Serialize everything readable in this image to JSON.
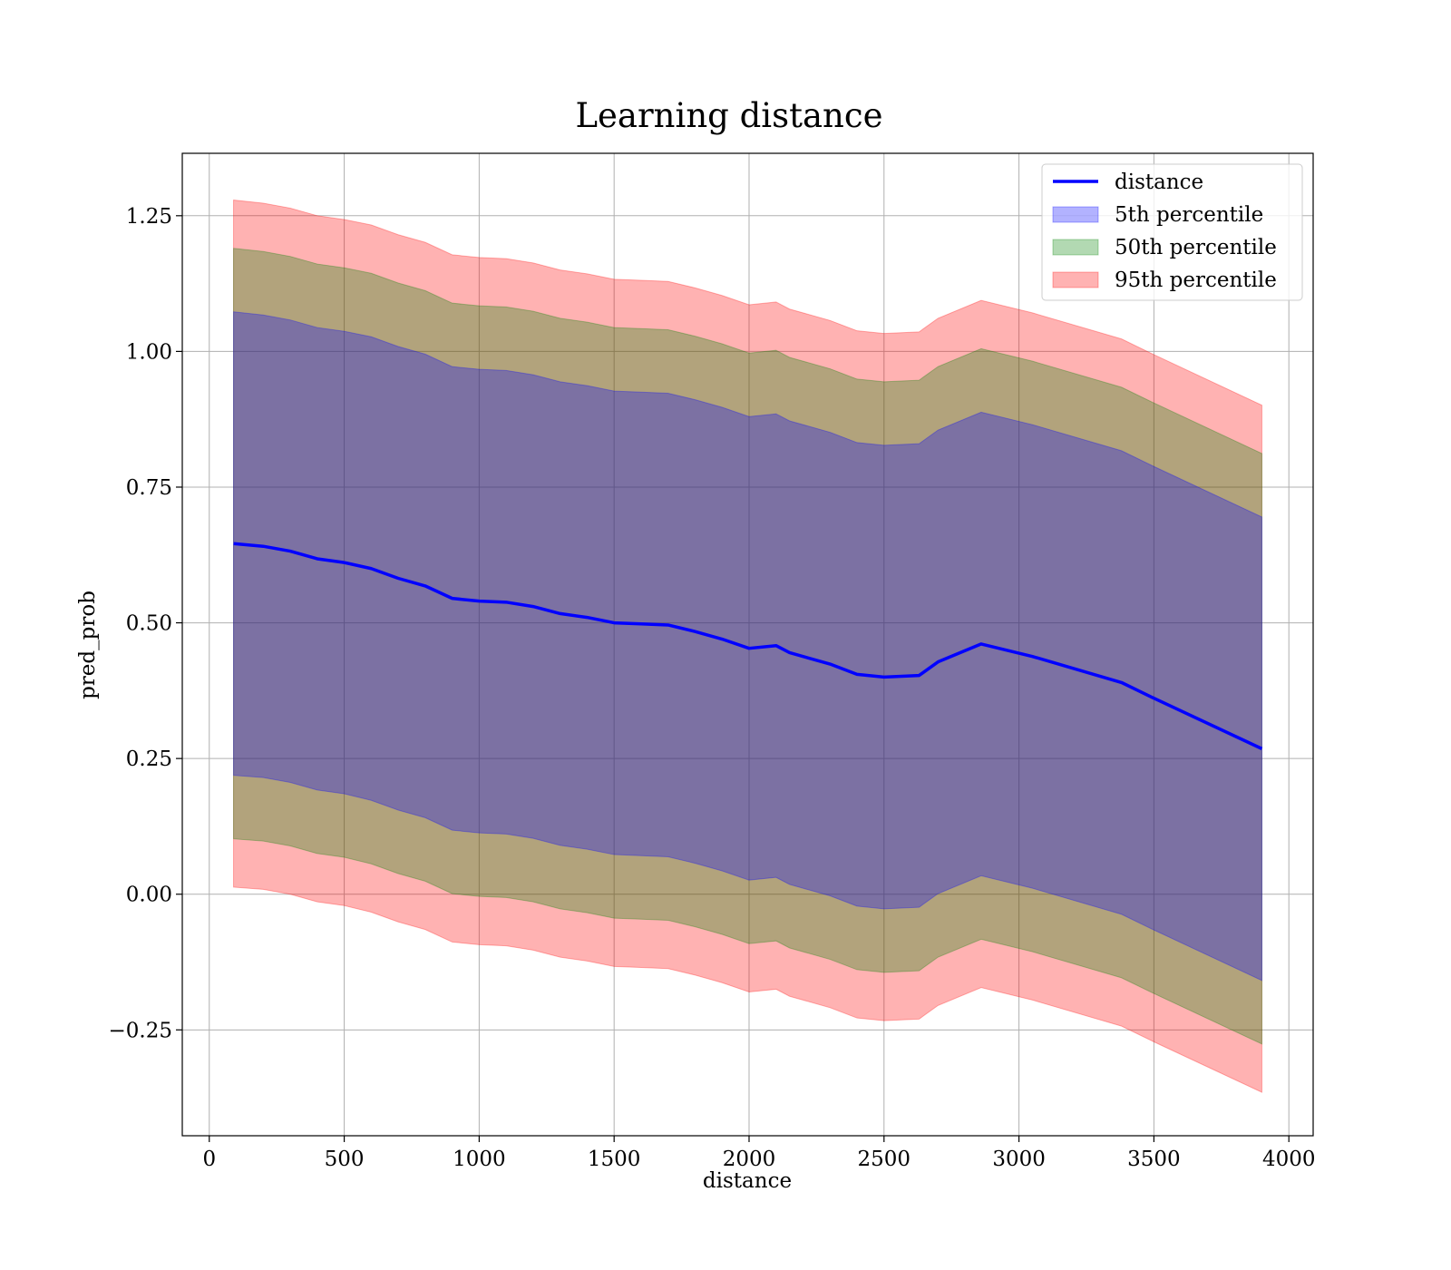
{
  "chart_data": {
    "type": "line",
    "title": "Learning distance",
    "xlabel": "distance",
    "ylabel": "pred_prob",
    "xlim": [
      -100,
      4090
    ],
    "ylim": [
      -0.445,
      1.365
    ],
    "x_ticks": [
      0,
      500,
      1000,
      1500,
      2000,
      2500,
      3000,
      3500,
      4000
    ],
    "y_ticks": [
      -0.25,
      0.0,
      0.25,
      0.5,
      0.75,
      1.0,
      1.25
    ],
    "x_tick_labels": [
      "0",
      "500",
      "1000",
      "1500",
      "2000",
      "2500",
      "3000",
      "3500",
      "4000"
    ],
    "y_tick_labels": [
      "−0.25",
      "0.00",
      "0.25",
      "0.50",
      "0.75",
      "1.00",
      "1.25"
    ],
    "grid": true,
    "legend_position": "top-right",
    "x": [
      90,
      200,
      300,
      400,
      500,
      600,
      700,
      800,
      900,
      1000,
      1100,
      1200,
      1300,
      1400,
      1500,
      1600,
      1700,
      1800,
      1900,
      2000,
      2100,
      2150,
      2300,
      2400,
      2500,
      2630,
      2700,
      2860,
      3050,
      3380,
      3500,
      3900
    ],
    "series": [
      {
        "name": "distance",
        "role": "line",
        "color": "#0000ff",
        "values": [
          0.646,
          0.641,
          0.632,
          0.618,
          0.611,
          0.6,
          0.582,
          0.568,
          0.545,
          0.54,
          0.538,
          0.53,
          0.517,
          0.51,
          0.5,
          0.498,
          0.496,
          0.484,
          0.47,
          0.453,
          0.458,
          0.445,
          0.424,
          0.405,
          0.4,
          0.403,
          0.428,
          0.461,
          0.438,
          0.39,
          0.361,
          0.268
        ]
      },
      {
        "name": "5th percentile",
        "role": "band",
        "color": "#0000ff",
        "upper": [
          1.073,
          1.067,
          1.058,
          1.044,
          1.037,
          1.027,
          1.009,
          0.995,
          0.972,
          0.967,
          0.965,
          0.957,
          0.944,
          0.937,
          0.927,
          0.925,
          0.923,
          0.911,
          0.897,
          0.88,
          0.885,
          0.872,
          0.851,
          0.832,
          0.827,
          0.83,
          0.855,
          0.888,
          0.865,
          0.817,
          0.788,
          0.695
        ],
        "lower": [
          0.219,
          0.215,
          0.206,
          0.192,
          0.185,
          0.173,
          0.155,
          0.141,
          0.118,
          0.113,
          0.111,
          0.103,
          0.09,
          0.083,
          0.073,
          0.071,
          0.069,
          0.057,
          0.043,
          0.026,
          0.031,
          0.018,
          -0.003,
          -0.022,
          -0.027,
          -0.024,
          0.001,
          0.034,
          0.011,
          -0.037,
          -0.066,
          -0.159
        ]
      },
      {
        "name": "50th percentile",
        "role": "band",
        "color": "#008000",
        "upper": [
          1.19,
          1.184,
          1.175,
          1.161,
          1.154,
          1.144,
          1.126,
          1.112,
          1.089,
          1.084,
          1.082,
          1.074,
          1.061,
          1.054,
          1.044,
          1.042,
          1.04,
          1.028,
          1.014,
          0.997,
          1.002,
          0.989,
          0.968,
          0.949,
          0.944,
          0.947,
          0.972,
          1.005,
          0.982,
          0.934,
          0.905,
          0.812
        ],
        "lower": [
          0.102,
          0.098,
          0.089,
          0.075,
          0.068,
          0.056,
          0.038,
          0.024,
          0.001,
          -0.004,
          -0.006,
          -0.014,
          -0.027,
          -0.034,
          -0.044,
          -0.046,
          -0.048,
          -0.06,
          -0.074,
          -0.091,
          -0.086,
          -0.099,
          -0.12,
          -0.139,
          -0.144,
          -0.141,
          -0.116,
          -0.083,
          -0.106,
          -0.154,
          -0.183,
          -0.276
        ]
      },
      {
        "name": "95th percentile",
        "role": "band",
        "color": "#ff0000",
        "upper": [
          1.279,
          1.273,
          1.264,
          1.25,
          1.243,
          1.233,
          1.215,
          1.201,
          1.178,
          1.173,
          1.171,
          1.163,
          1.15,
          1.143,
          1.133,
          1.131,
          1.129,
          1.117,
          1.103,
          1.086,
          1.091,
          1.078,
          1.057,
          1.038,
          1.033,
          1.036,
          1.061,
          1.094,
          1.071,
          1.023,
          0.994,
          0.901
        ],
        "lower": [
          0.013,
          0.009,
          0.0,
          -0.014,
          -0.021,
          -0.033,
          -0.051,
          -0.065,
          -0.088,
          -0.093,
          -0.095,
          -0.103,
          -0.116,
          -0.123,
          -0.133,
          -0.135,
          -0.137,
          -0.149,
          -0.163,
          -0.18,
          -0.175,
          -0.188,
          -0.209,
          -0.228,
          -0.233,
          -0.23,
          -0.205,
          -0.172,
          -0.195,
          -0.243,
          -0.272,
          -0.365
        ]
      }
    ]
  }
}
